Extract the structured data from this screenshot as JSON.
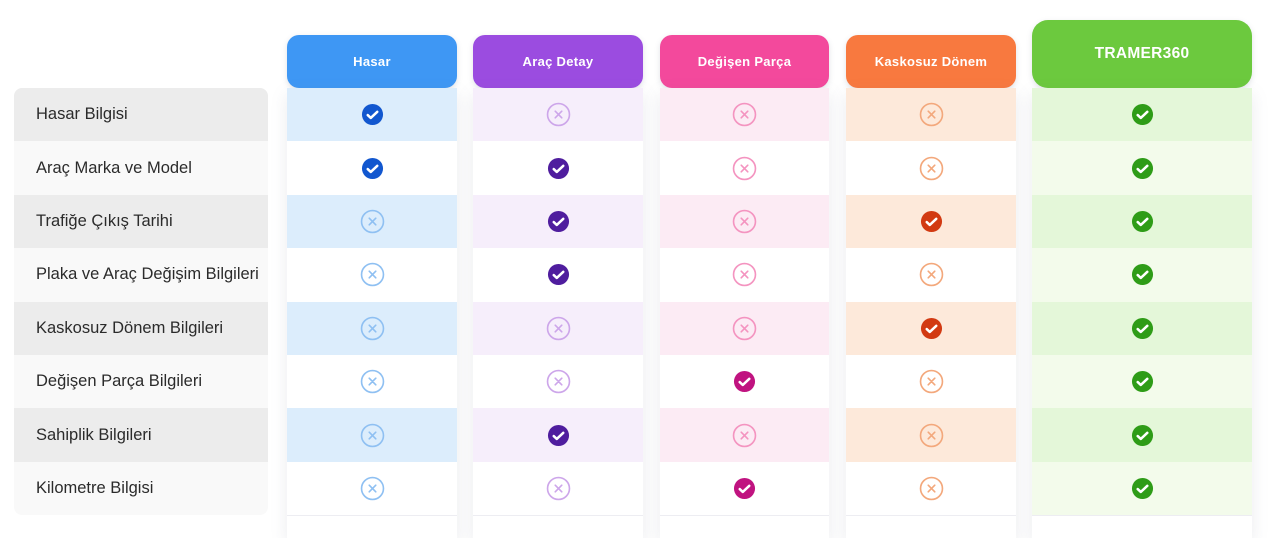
{
  "table": {
    "rows": [
      {
        "label": "Hasar Bilgisi"
      },
      {
        "label": "Araç Marka ve Model"
      },
      {
        "label": "Trafiğe Çıkış Tarihi"
      },
      {
        "label": "Plaka ve Araç Değişim Bilgileri"
      },
      {
        "label": "Kaskosuz Dönem Bilgileri"
      },
      {
        "label": "Değişen Parça Bilgileri"
      },
      {
        "label": "Sahiplik Bilgileri"
      },
      {
        "label": "Kilometre Bilgisi"
      }
    ],
    "columns": [
      {
        "id": "hasar",
        "label": "Hasar",
        "featured": false,
        "colors": {
          "header": "#3e97f4",
          "tint": "#dcedfc",
          "alt": "#ffffff",
          "check": "#1257cf",
          "x": "#8fc0f2"
        },
        "cells": [
          "check",
          "check",
          "x",
          "x",
          "x",
          "x",
          "x",
          "x"
        ]
      },
      {
        "id": "arac-detay",
        "label": "Araç Detay",
        "featured": false,
        "colors": {
          "header": "#9b4ce0",
          "tint": "#f6eefb",
          "alt": "#ffffff",
          "check": "#4f1d9e",
          "x": "#cda6ea"
        },
        "cells": [
          "x",
          "check",
          "check",
          "check",
          "x",
          "x",
          "check",
          "x"
        ]
      },
      {
        "id": "degisen-parca",
        "label": "Değişen Parça",
        "featured": false,
        "colors": {
          "header": "#f3499c",
          "tint": "#fcebf4",
          "alt": "#ffffff",
          "check": "#c01380",
          "x": "#f494c0"
        },
        "cells": [
          "x",
          "x",
          "x",
          "x",
          "x",
          "check",
          "x",
          "check"
        ]
      },
      {
        "id": "kaskosuz-donem",
        "label": "Kaskosuz Dönem",
        "featured": false,
        "colors": {
          "header": "#f8793f",
          "tint": "#fde9da",
          "alt": "#ffffff",
          "check": "#d23a12",
          "x": "#f3a87c"
        },
        "cells": [
          "x",
          "x",
          "check",
          "x",
          "check",
          "x",
          "x",
          "x"
        ]
      },
      {
        "id": "tramer360",
        "label": "TRAMER360",
        "featured": true,
        "colors": {
          "header": "#6cc93e",
          "tint": "#e4f7d9",
          "alt": "#f3fbeb",
          "check": "#2e9c17",
          "x": "#bfe8a8"
        },
        "cells": [
          "check",
          "check",
          "check",
          "check",
          "check",
          "check",
          "check",
          "check"
        ]
      }
    ],
    "icon_names": {
      "check": "check-circle-icon",
      "x": "x-circle-icon"
    }
  }
}
